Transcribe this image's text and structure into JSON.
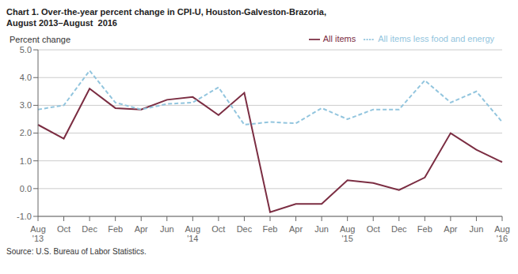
{
  "chart_data": {
    "type": "line",
    "title": "Chart 1. Over-the-year percent change in CPI-U, Houston-Galveston-Brazoria,\nAugust 2013–August  2016",
    "ylabel": "Percent change",
    "source": "Source: U.S. Bureau of Labor Statistics.",
    "categories": [
      "Aug\n'13",
      "Oct",
      "Dec",
      "Feb",
      "Apr",
      "Jun",
      "Aug\n'14",
      "Oct",
      "Dec",
      "Feb",
      "Apr",
      "Jun",
      "Aug\n'15",
      "Oct",
      "Dec",
      "Feb",
      "Apr",
      "Jun",
      "Aug\n'16"
    ],
    "series": [
      {
        "name": "All items",
        "color": "#7B2D42",
        "line_style": "solid",
        "values": [
          2.3,
          1.8,
          3.6,
          2.9,
          2.85,
          3.2,
          3.3,
          2.65,
          3.45,
          -0.85,
          -0.55,
          -0.55,
          0.3,
          0.2,
          -0.05,
          0.4,
          2.0,
          1.4,
          0.95
        ]
      },
      {
        "name": "All items less food and energy",
        "color": "#92C5DE",
        "line_style": "dashed",
        "values": [
          2.85,
          3.0,
          4.25,
          3.1,
          2.85,
          3.05,
          3.1,
          3.65,
          2.3,
          2.4,
          2.35,
          2.9,
          2.5,
          2.85,
          2.85,
          3.9,
          3.1,
          3.5,
          2.4
        ]
      }
    ],
    "ylim": [
      -1.0,
      5.0
    ],
    "yticks": [
      {
        "value": -1.0,
        "label": "-1.0"
      },
      {
        "value": 0.0,
        "label": "0.0"
      },
      {
        "value": 1.0,
        "label": "1.0"
      },
      {
        "value": 2.0,
        "label": "2.0"
      },
      {
        "value": 3.0,
        "label": "3.0"
      },
      {
        "value": 4.0,
        "label": "4.0"
      },
      {
        "value": 5.0,
        "label": "5.0"
      }
    ],
    "grid": true,
    "legend": "upper right"
  }
}
